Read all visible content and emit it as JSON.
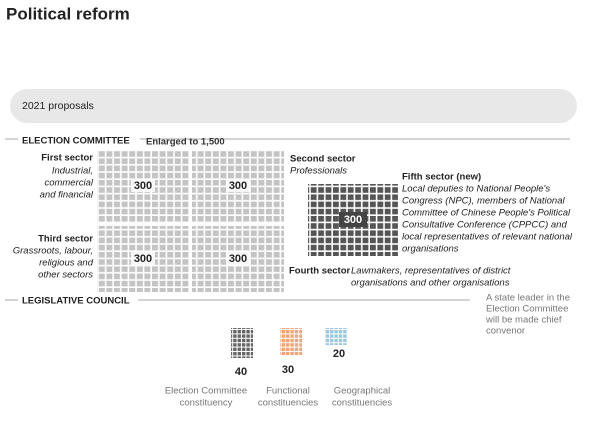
{
  "title": "Political reform",
  "banner": "2021 proposals",
  "election_committee": {
    "heading": "ELECTION COMMITTEE",
    "note": "Enlarged to 1,500",
    "sectors": [
      {
        "name": "First sector",
        "description": [
          "Industrial,",
          "commercial",
          "and financial"
        ],
        "seats": 300
      },
      {
        "name": "Second sector",
        "description": [
          "Professionals"
        ],
        "seats": 300
      },
      {
        "name": "Third sector",
        "description": [
          "Grassroots, labour,",
          "religious and",
          "other sectors"
        ],
        "seats": 300
      },
      {
        "name": "Fourth sector",
        "description": [
          "Lawmakers, representatives of district",
          "organisations and other organisations"
        ],
        "seats": 300
      },
      {
        "name": "Fifth sector (new)",
        "description": [
          "Local deputies to National People's",
          "Congress (NPC), members of National",
          "Committee of Chinese People's Political",
          "Consultative Conference (CPPCC) and",
          "local representatives of relevant national",
          "organisations"
        ],
        "seats": 300
      }
    ]
  },
  "legislative_council": {
    "heading": "LEGISLATIVE COUNCIL",
    "note": [
      "A state leader in the",
      "Election Committee",
      "will be made chief",
      "convenor"
    ],
    "groups": [
      {
        "seats": 40,
        "label": [
          "Election Committee",
          "constituency"
        ]
      },
      {
        "seats": 30,
        "label": [
          "Functional",
          "constituencies"
        ]
      },
      {
        "seats": 20,
        "label": [
          "Geographical",
          "constituencies"
        ]
      }
    ]
  }
}
